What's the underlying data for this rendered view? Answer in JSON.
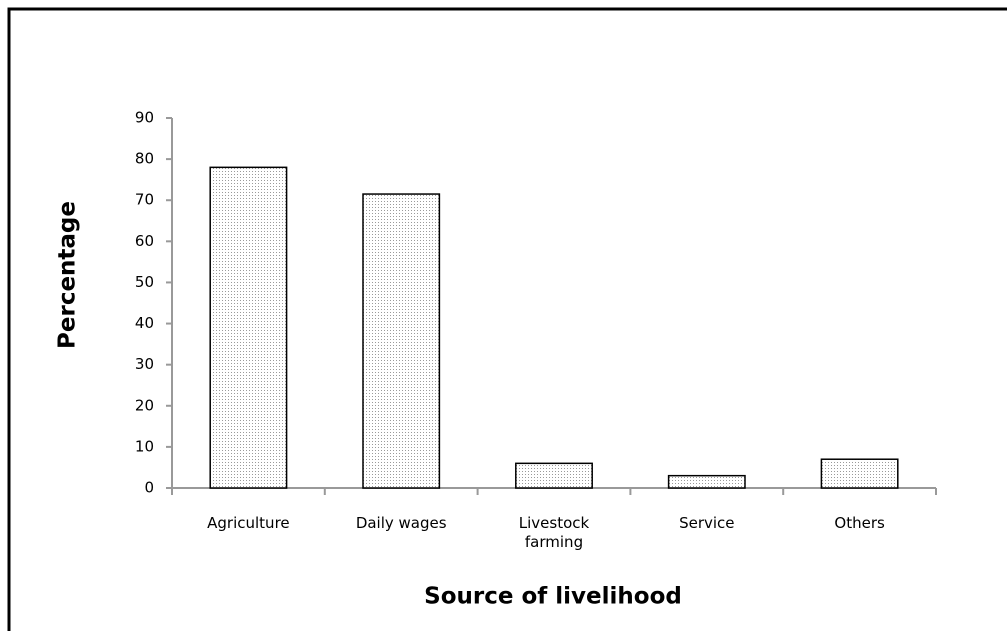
{
  "chart_data": {
    "type": "bar",
    "x_label": "Source of livelihood",
    "y_label": "Percentage",
    "categories": [
      "Agriculture",
      "Daily wages",
      "Livestock farming",
      "Service",
      "Others"
    ],
    "values": [
      78,
      71.5,
      6,
      3,
      7
    ],
    "color": "#9a9a9a",
    "ylim": [
      0,
      90
    ],
    "yticks": [
      0,
      10,
      20,
      30,
      40,
      50,
      60,
      70,
      80,
      90
    ],
    "grid": false
  }
}
